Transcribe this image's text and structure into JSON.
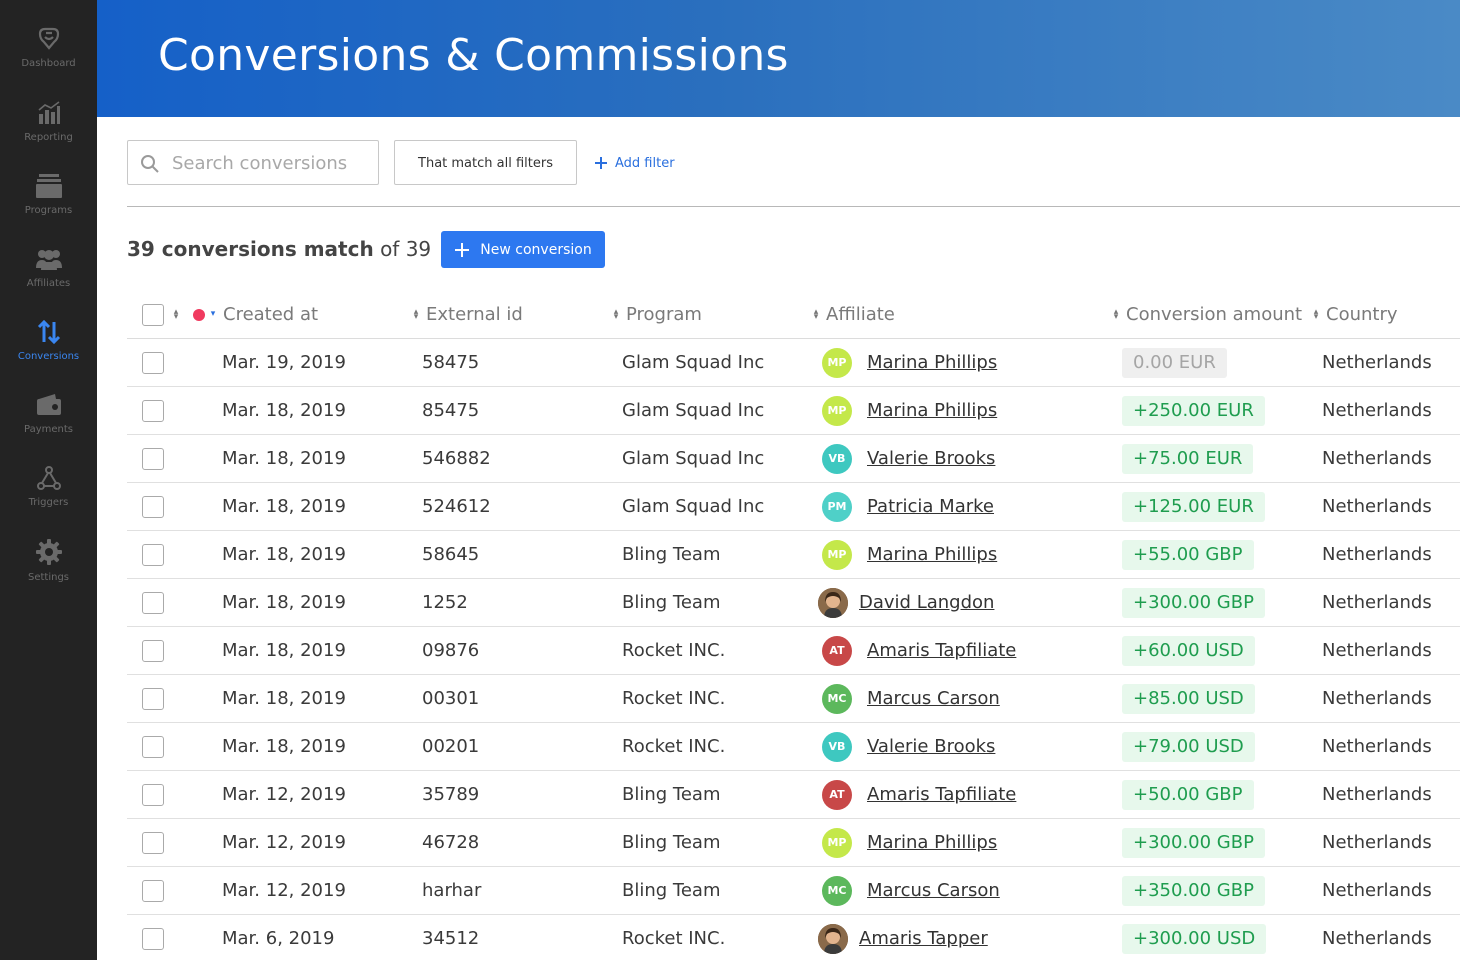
{
  "nav": [
    {
      "label": "Dashboard",
      "icon": "logo-icon",
      "active": false
    },
    {
      "label": "Reporting",
      "icon": "bar-chart-icon",
      "active": false
    },
    {
      "label": "Programs",
      "icon": "stack-icon",
      "active": false
    },
    {
      "label": "Affiliates",
      "icon": "users-icon",
      "active": false
    },
    {
      "label": "Conversions",
      "icon": "arrows-updown-icon",
      "active": true
    },
    {
      "label": "Payments",
      "icon": "wallet-icon",
      "active": false
    },
    {
      "label": "Triggers",
      "icon": "triggers-icon",
      "active": false
    },
    {
      "label": "Settings",
      "icon": "gear-icon",
      "active": false
    }
  ],
  "header": {
    "title": "Conversions & Commissions"
  },
  "toolbar": {
    "search_placeholder": "Search conversions",
    "filter_mode": "That match all filters",
    "add_filter": "Add filter"
  },
  "summary": {
    "matched": "39 conversions match",
    "of_total": "of 39"
  },
  "new_button": "New conversion",
  "columns": [
    "Created at",
    "External id",
    "Program",
    "Affiliate",
    "Conversion amount",
    "Country"
  ],
  "rows": [
    {
      "date": "Mar. 19, 2019",
      "ext": "58475",
      "program": "Glam Squad Inc",
      "initials": "MP",
      "avatar_color": "#c4e84a",
      "affiliate": "Marina Phillips",
      "amount": "0.00 EUR",
      "zero": true,
      "country": "Netherlands"
    },
    {
      "date": "Mar. 18, 2019",
      "ext": "85475",
      "program": "Glam Squad Inc",
      "initials": "MP",
      "avatar_color": "#c4e84a",
      "affiliate": "Marina Phillips",
      "amount": "+250.00 EUR",
      "zero": false,
      "country": "Netherlands"
    },
    {
      "date": "Mar. 18, 2019",
      "ext": "546882",
      "program": "Glam Squad Inc",
      "initials": "VB",
      "avatar_color": "#3ec8c0",
      "affiliate": "Valerie Brooks",
      "amount": "+75.00 EUR",
      "zero": false,
      "country": "Netherlands"
    },
    {
      "date": "Mar. 18, 2019",
      "ext": "524612",
      "program": "Glam Squad Inc",
      "initials": "PM",
      "avatar_color": "#4fd0c8",
      "affiliate": "Patricia Marke",
      "amount": "+125.00 EUR",
      "zero": false,
      "country": "Netherlands"
    },
    {
      "date": "Mar. 18, 2019",
      "ext": "58645",
      "program": "Bling Team",
      "initials": "MP",
      "avatar_color": "#c4e84a",
      "affiliate": "Marina Phillips",
      "amount": "+55.00 GBP",
      "zero": false,
      "country": "Netherlands"
    },
    {
      "date": "Mar. 18, 2019",
      "ext": "1252",
      "program": "Bling Team",
      "initials": "",
      "avatar_color": "photo",
      "affiliate": "David Langdon",
      "amount": "+300.00 GBP",
      "zero": false,
      "country": "Netherlands"
    },
    {
      "date": "Mar. 18, 2019",
      "ext": "09876",
      "program": "Rocket INC.",
      "initials": "AT",
      "avatar_color": "#c84848",
      "affiliate": "Amaris Tapfiliate",
      "amount": "+60.00 USD",
      "zero": false,
      "country": "Netherlands"
    },
    {
      "date": "Mar. 18, 2019",
      "ext": "00301",
      "program": "Rocket INC.",
      "initials": "MC",
      "avatar_color": "#5cb85c",
      "affiliate": "Marcus Carson",
      "amount": "+85.00 USD",
      "zero": false,
      "country": "Netherlands"
    },
    {
      "date": "Mar. 18, 2019",
      "ext": "00201",
      "program": "Rocket INC.",
      "initials": "VB",
      "avatar_color": "#3ec8c0",
      "affiliate": "Valerie Brooks",
      "amount": "+79.00 USD",
      "zero": false,
      "country": "Netherlands"
    },
    {
      "date": "Mar. 12, 2019",
      "ext": "35789",
      "program": "Bling Team",
      "initials": "AT",
      "avatar_color": "#c84848",
      "affiliate": "Amaris Tapfiliate",
      "amount": "+50.00 GBP",
      "zero": false,
      "country": "Netherlands"
    },
    {
      "date": "Mar. 12, 2019",
      "ext": "46728",
      "program": "Bling Team",
      "initials": "MP",
      "avatar_color": "#c4e84a",
      "affiliate": "Marina Phillips",
      "amount": "+300.00 GBP",
      "zero": false,
      "country": "Netherlands"
    },
    {
      "date": "Mar. 12, 2019",
      "ext": "harhar",
      "program": "Bling Team",
      "initials": "MC",
      "avatar_color": "#5cb85c",
      "affiliate": "Marcus Carson",
      "amount": "+350.00 GBP",
      "zero": false,
      "country": "Netherlands"
    },
    {
      "date": "Mar. 6, 2019",
      "ext": "34512",
      "program": "Rocket INC.",
      "initials": "",
      "avatar_color": "photo",
      "affiliate": "Amaris Tapper",
      "amount": "+300.00 USD",
      "zero": false,
      "country": "Netherlands"
    }
  ]
}
